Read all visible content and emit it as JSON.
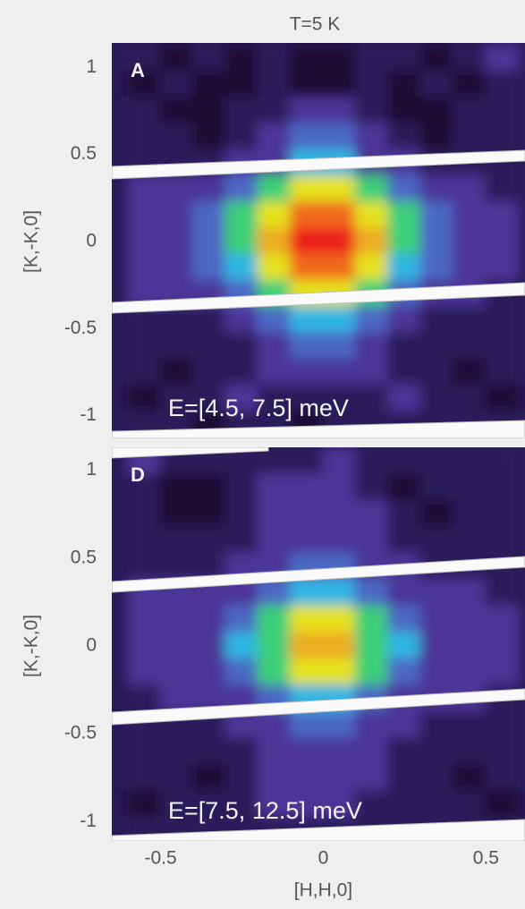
{
  "chart_data": [
    {
      "type": "heatmap",
      "title": "T=5 K",
      "panel_label": "A",
      "annotation": "E=[4.5, 7.5] meV",
      "y_label": "[K,-K,0]",
      "xlim": [
        -0.65,
        0.62
      ],
      "ylim": [
        -1.13,
        1.14
      ],
      "yticks": [
        1,
        0.5,
        0,
        -0.5,
        -1
      ],
      "colormap": [
        {
          "value": 0,
          "color": "#08030f"
        },
        {
          "value": 2,
          "color": "#2b1a5a"
        },
        {
          "value": 3.5,
          "color": "#5b41b5"
        },
        {
          "value": 5,
          "color": "#2fb6e2"
        },
        {
          "value": 6,
          "color": "#3dcf78"
        },
        {
          "value": 7,
          "color": "#e6e21f"
        },
        {
          "value": 8.5,
          "color": "#f09020"
        },
        {
          "value": 10,
          "color": "#ee1c1c"
        }
      ],
      "x": [
        -0.55,
        -0.45,
        -0.35,
        -0.25,
        -0.15,
        -0.05,
        0.05,
        0.15,
        0.25,
        0.35,
        0.45,
        0.55
      ],
      "y": [
        1.05,
        0.9,
        0.75,
        0.6,
        0.45,
        0.3,
        0.15,
        0,
        -0.15,
        -0.3,
        -0.45,
        -0.6,
        -0.75,
        -0.9,
        -1.05
      ],
      "z": [
        [
          2,
          1,
          2,
          1,
          2,
          1,
          1,
          2,
          2,
          1,
          2,
          3
        ],
        [
          1,
          2,
          1,
          1,
          2,
          1,
          1,
          2,
          1,
          2,
          1,
          2
        ],
        [
          2,
          1,
          1,
          2,
          2,
          3,
          3,
          2,
          1,
          1,
          2,
          2
        ],
        [
          2,
          2,
          1,
          2,
          3,
          4,
          4,
          3,
          2,
          1,
          2,
          2
        ],
        [
          2,
          2,
          2,
          3,
          3,
          5,
          5,
          3,
          3,
          2,
          2,
          2
        ],
        [
          3,
          3,
          3,
          4,
          6,
          7,
          7,
          6,
          4,
          3,
          3,
          2
        ],
        [
          3,
          3,
          4,
          6,
          7,
          9,
          9,
          7,
          6,
          4,
          3,
          3
        ],
        [
          3,
          3,
          4,
          6,
          8,
          10,
          10,
          8,
          6,
          4,
          3,
          3
        ],
        [
          3,
          3,
          4,
          5,
          7,
          9,
          9,
          7,
          5,
          4,
          3,
          3
        ],
        [
          3,
          3,
          3,
          4,
          6,
          7,
          7,
          6,
          4,
          3,
          3,
          2
        ],
        [
          2,
          2,
          2,
          3,
          4,
          5,
          5,
          4,
          3,
          2,
          2,
          2
        ],
        [
          2,
          2,
          2,
          2,
          3,
          4,
          4,
          3,
          2,
          2,
          2,
          2
        ],
        [
          2,
          1,
          2,
          2,
          3,
          3,
          3,
          3,
          2,
          2,
          1,
          2
        ],
        [
          1,
          2,
          2,
          3,
          2,
          2,
          2,
          2,
          3,
          2,
          2,
          1
        ],
        [
          2,
          2,
          1,
          2,
          2,
          1,
          2,
          2,
          2,
          2,
          2,
          2
        ]
      ]
    },
    {
      "type": "heatmap",
      "panel_label": "D",
      "annotation": "E=[7.5, 12.5] meV",
      "y_label": "[K,-K,0]",
      "x_label": "[H,H,0]",
      "xlim": [
        -0.65,
        0.62
      ],
      "ylim": [
        -1.11,
        1.13
      ],
      "xticks": [
        -0.5,
        0,
        0.5
      ],
      "yticks": [
        1,
        0.5,
        0,
        -0.5,
        -1
      ],
      "colormap": [
        {
          "value": 0,
          "color": "#08030f"
        },
        {
          "value": 2,
          "color": "#2b1a5a"
        },
        {
          "value": 3.5,
          "color": "#5b41b5"
        },
        {
          "value": 5,
          "color": "#2fb6e2"
        },
        {
          "value": 6,
          "color": "#3dcf78"
        },
        {
          "value": 7,
          "color": "#e6e21f"
        },
        {
          "value": 8.5,
          "color": "#f09020"
        },
        {
          "value": 10,
          "color": "#ee1c1c"
        }
      ],
      "x": [
        -0.55,
        -0.45,
        -0.35,
        -0.25,
        -0.15,
        -0.05,
        0.05,
        0.15,
        0.25,
        0.35,
        0.45,
        0.55
      ],
      "y": [
        1.05,
        0.9,
        0.75,
        0.6,
        0.45,
        0.3,
        0.15,
        0,
        -0.15,
        -0.3,
        -0.45,
        -0.6,
        -0.75,
        -0.9,
        -1.05
      ],
      "z": [
        [
          3,
          2,
          2,
          2,
          2,
          2,
          3,
          2,
          2,
          2,
          2,
          2
        ],
        [
          2,
          1,
          1,
          2,
          3,
          3,
          3,
          2,
          1,
          2,
          2,
          2
        ],
        [
          2,
          1,
          1,
          2,
          3,
          3,
          3,
          3,
          2,
          1,
          2,
          2
        ],
        [
          2,
          2,
          2,
          2,
          3,
          3,
          3,
          3,
          2,
          2,
          2,
          2
        ],
        [
          2,
          2,
          2,
          3,
          3,
          4,
          4,
          3,
          3,
          2,
          2,
          2
        ],
        [
          3,
          3,
          3,
          3,
          4,
          5,
          5,
          4,
          3,
          3,
          3,
          2
        ],
        [
          3,
          3,
          3,
          4,
          6,
          7,
          7,
          6,
          4,
          3,
          3,
          3
        ],
        [
          3,
          3,
          3,
          5,
          6,
          8,
          8,
          6,
          5,
          3,
          3,
          3
        ],
        [
          3,
          3,
          3,
          4,
          6,
          7,
          7,
          6,
          4,
          3,
          3,
          3
        ],
        [
          2,
          3,
          3,
          3,
          4,
          5,
          5,
          4,
          3,
          3,
          3,
          2
        ],
        [
          2,
          2,
          2,
          3,
          3,
          4,
          4,
          3,
          3,
          2,
          2,
          2
        ],
        [
          2,
          2,
          2,
          2,
          3,
          3,
          3,
          3,
          2,
          2,
          2,
          2
        ],
        [
          2,
          2,
          1,
          2,
          3,
          3,
          3,
          3,
          2,
          2,
          1,
          2
        ],
        [
          1,
          2,
          2,
          2,
          3,
          3,
          3,
          2,
          2,
          2,
          2,
          1
        ],
        [
          2,
          2,
          2,
          2,
          2,
          2,
          2,
          2,
          2,
          2,
          2,
          2
        ]
      ]
    }
  ]
}
